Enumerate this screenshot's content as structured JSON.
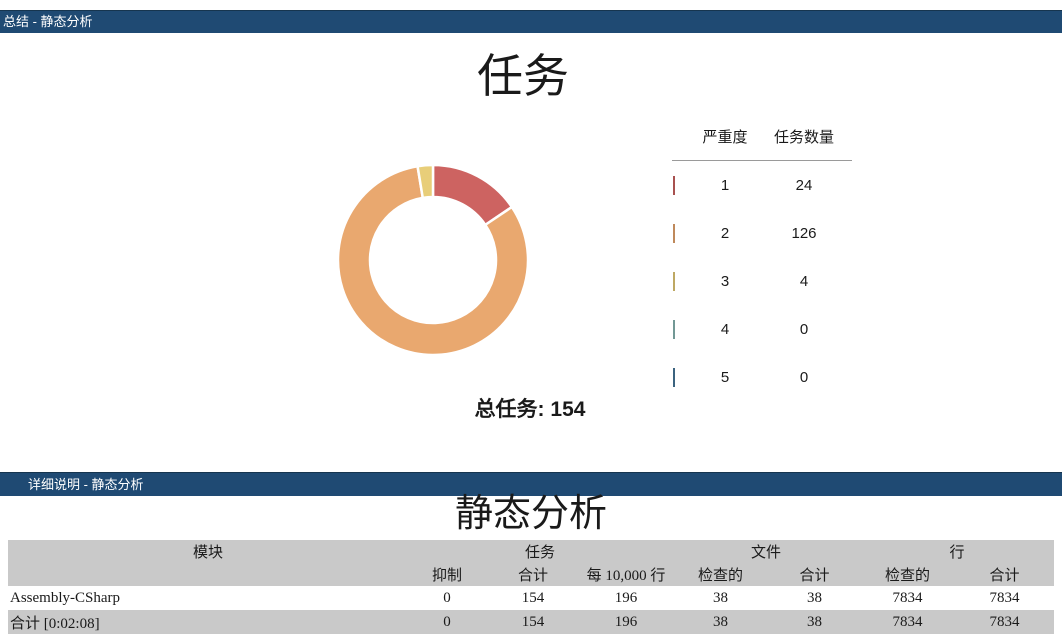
{
  "summary_bar": {
    "label": "总结 - 静态分析"
  },
  "details_bar": {
    "label": "详细说明 - 静态分析"
  },
  "details_title": "静态分析",
  "colors": {
    "header_bar": "#1f4a73",
    "table_header_bg": "#c9c9c9",
    "severity_1": "#cd6361",
    "severity_2": "#e9a86f",
    "severity_3": "#e8ce79",
    "severity_4": "#8cbab6",
    "severity_5": "#49799b"
  },
  "chart_data": {
    "type": "pie",
    "subtype": "donut",
    "title": "任务",
    "total": 154,
    "total_label": "总任务: 154",
    "legend": {
      "position": "right",
      "category_header": "严重度",
      "value_header": "任务数量"
    },
    "categories": [
      "1",
      "2",
      "3",
      "4",
      "5"
    ],
    "values": [
      24,
      126,
      4,
      0,
      0
    ],
    "colors": [
      "#cd6361",
      "#e9a86f",
      "#e8ce79",
      "#8cbab6",
      "#49799b"
    ],
    "start_angle_deg": -90,
    "direction": "clockwise",
    "inner_radius_ratio": 0.66
  },
  "table": {
    "group_headers": {
      "module": "模块",
      "tasks": "任务",
      "files": "文件",
      "lines": "行"
    },
    "sub_headers": [
      "抑制",
      "合计",
      "每 10,000 行",
      "检查的",
      "合计",
      "检查的",
      "合计"
    ],
    "rows": [
      {
        "module": "Assembly-CSharp",
        "values": [
          "0",
          "154",
          "196",
          "38",
          "38",
          "7834",
          "7834"
        ]
      },
      {
        "module": "合计 [0:02:08]",
        "values": [
          "0",
          "154",
          "196",
          "38",
          "38",
          "7834",
          "7834"
        ]
      }
    ]
  }
}
